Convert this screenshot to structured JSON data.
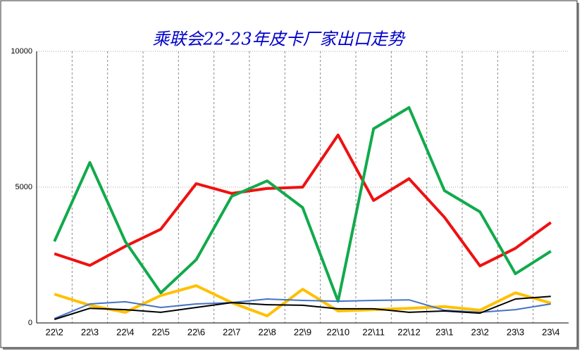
{
  "chart_data": {
    "type": "line",
    "title": "乘联会22-23年皮卡厂家出口走势",
    "categories": [
      "22\\2",
      "22\\3",
      "22\\4",
      "22\\5",
      "22\\6",
      "22\\7",
      "22\\8",
      "22\\9",
      "22\\10",
      "22\\11",
      "22\\12",
      "23\\1",
      "23\\2",
      "23\\3",
      "23\\4"
    ],
    "series": [
      {
        "color": "#ee1111",
        "values": [
          2550,
          2120,
          2820,
          3450,
          5130,
          4770,
          4950,
          5000,
          6920,
          4510,
          5310,
          3890,
          2100,
          2750,
          3700
        ]
      },
      {
        "color": "#11aa4c",
        "values": [
          3000,
          5910,
          3000,
          1110,
          2330,
          4660,
          5230,
          4250,
          800,
          7150,
          7930,
          4870,
          4090,
          1810,
          2640
        ]
      },
      {
        "color": "#ffc000",
        "values": [
          1060,
          650,
          390,
          1010,
          1370,
          750,
          260,
          1240,
          440,
          490,
          540,
          600,
          470,
          1110,
          730
        ]
      },
      {
        "color": "#4472c4",
        "values": [
          160,
          700,
          780,
          570,
          700,
          750,
          880,
          830,
          800,
          830,
          850,
          470,
          390,
          490,
          700
        ]
      },
      {
        "color": "#000000",
        "values": [
          130,
          540,
          490,
          390,
          570,
          750,
          670,
          650,
          520,
          520,
          390,
          440,
          360,
          880,
          980
        ]
      }
    ],
    "ylim": [
      0,
      10000
    ],
    "yticks": [
      0,
      5000,
      10000
    ],
    "grid": true
  }
}
